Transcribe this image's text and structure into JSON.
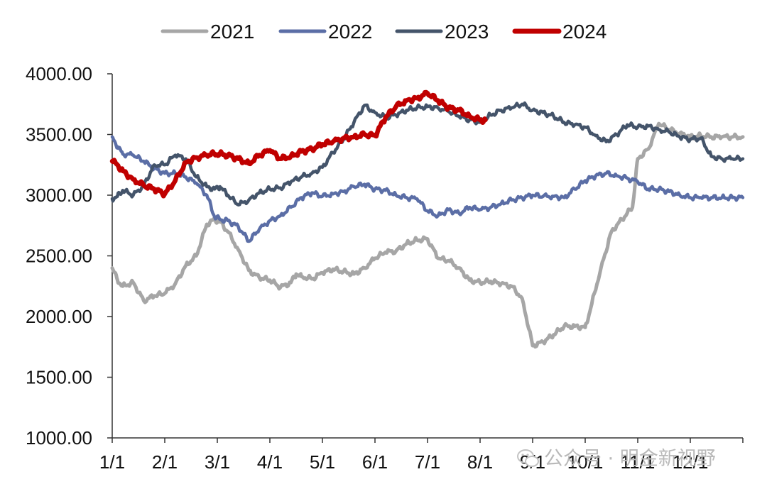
{
  "chart_data": {
    "type": "line",
    "title": "",
    "xlabel": "",
    "ylabel": "",
    "ylim": [
      1000,
      4000
    ],
    "y_ticks": [
      "4000.00",
      "3500.00",
      "3000.00",
      "2500.00",
      "2000.00",
      "1500.00",
      "1000.00"
    ],
    "x_ticks": [
      "1/1",
      "2/1",
      "3/1",
      "4/1",
      "5/1",
      "6/1",
      "7/1",
      "8/1",
      "9/1",
      "10/1",
      "11/1",
      "12/1"
    ],
    "x_unit": "month (1 = Jan 1, 13 = Dec 31)",
    "legend_position": "top",
    "series": [
      {
        "name": "2021",
        "color": "#a6a6a6",
        "x": [
          1.0,
          1.1,
          1.2,
          1.4,
          1.6,
          1.8,
          2.0,
          2.2,
          2.4,
          2.6,
          2.8,
          2.95,
          3.05,
          3.2,
          3.4,
          3.6,
          3.8,
          4.0,
          4.2,
          4.4,
          4.5,
          4.6,
          4.8,
          5.0,
          5.2,
          5.4,
          5.6,
          5.8,
          6.0,
          6.2,
          6.4,
          6.6,
          6.8,
          7.0,
          7.2,
          7.4,
          7.6,
          7.8,
          8.0,
          8.2,
          8.4,
          8.6,
          8.8,
          9.0,
          9.2,
          9.4,
          9.6,
          9.8,
          10.0,
          10.1,
          10.3,
          10.5,
          10.7,
          10.9,
          11.0,
          11.2,
          11.4,
          11.6,
          11.8,
          12.0,
          12.2,
          12.4,
          12.6,
          12.8,
          13.0
        ],
        "values": [
          2400,
          2300,
          2250,
          2280,
          2130,
          2170,
          2190,
          2270,
          2420,
          2500,
          2760,
          2800,
          2780,
          2700,
          2550,
          2380,
          2320,
          2300,
          2240,
          2280,
          2350,
          2330,
          2310,
          2360,
          2390,
          2370,
          2350,
          2400,
          2480,
          2530,
          2540,
          2600,
          2630,
          2640,
          2480,
          2460,
          2400,
          2300,
          2280,
          2290,
          2270,
          2250,
          2150,
          1760,
          1790,
          1850,
          1920,
          1920,
          1910,
          2060,
          2400,
          2700,
          2800,
          2900,
          3300,
          3380,
          3590,
          3540,
          3510,
          3480,
          3490,
          3480,
          3480,
          3480,
          3480
        ],
        "drawn_until": 13.0
      },
      {
        "name": "2022",
        "color": "#5b6ea6",
        "x": [
          1.0,
          1.1,
          1.2,
          1.4,
          1.6,
          1.8,
          2.0,
          2.2,
          2.4,
          2.6,
          2.8,
          2.95,
          3.05,
          3.2,
          3.4,
          3.6,
          3.8,
          4.0,
          4.2,
          4.4,
          4.6,
          4.8,
          5.0,
          5.2,
          5.4,
          5.6,
          5.8,
          6.0,
          6.2,
          6.4,
          6.6,
          6.8,
          7.0,
          7.2,
          7.4,
          7.6,
          7.8,
          8.0,
          8.2,
          8.4,
          8.6,
          8.8,
          9.0,
          9.2,
          9.4,
          9.6,
          9.8,
          10.0,
          10.2,
          10.4,
          10.6,
          10.8,
          11.0,
          11.2,
          11.4,
          11.6,
          11.8,
          12.0,
          12.2,
          12.4,
          12.6,
          12.8,
          13.0
        ],
        "values": [
          3480,
          3400,
          3340,
          3330,
          3280,
          3220,
          3180,
          3180,
          3150,
          3100,
          3000,
          2820,
          2800,
          2790,
          2740,
          2620,
          2720,
          2790,
          2830,
          2900,
          2980,
          3020,
          2990,
          3010,
          3030,
          3070,
          3090,
          3050,
          3040,
          3000,
          2980,
          2970,
          2870,
          2830,
          2880,
          2850,
          2900,
          2880,
          2900,
          2930,
          2960,
          2980,
          3000,
          2990,
          2990,
          2980,
          3050,
          3120,
          3160,
          3180,
          3160,
          3140,
          3110,
          3050,
          3050,
          3030,
          3000,
          2980,
          2980,
          2980,
          2980,
          2980,
          2980
        ],
        "drawn_until": 13.0
      },
      {
        "name": "2023",
        "color": "#44546a",
        "x": [
          1.0,
          1.1,
          1.2,
          1.4,
          1.6,
          1.8,
          2.0,
          2.2,
          2.4,
          2.6,
          2.8,
          2.95,
          3.05,
          3.2,
          3.4,
          3.6,
          3.8,
          4.0,
          4.2,
          4.4,
          4.6,
          4.8,
          5.0,
          5.2,
          5.4,
          5.6,
          5.8,
          6.0,
          6.2,
          6.4,
          6.6,
          6.8,
          7.0,
          7.2,
          7.4,
          7.6,
          7.8,
          8.0,
          8.2,
          8.4,
          8.6,
          8.8,
          9.0,
          9.2,
          9.4,
          9.6,
          9.8,
          10.0,
          10.2,
          10.4,
          10.6,
          10.8,
          11.0,
          11.2,
          11.4,
          11.6,
          11.8,
          12.0,
          12.2,
          12.4,
          12.6,
          12.8,
          13.0
        ],
        "values": [
          2970,
          2990,
          3040,
          3000,
          3080,
          3250,
          3250,
          3330,
          3300,
          3150,
          3070,
          3050,
          3070,
          3000,
          2920,
          2960,
          3020,
          3050,
          3060,
          3110,
          3150,
          3180,
          3230,
          3350,
          3460,
          3600,
          3740,
          3680,
          3640,
          3660,
          3700,
          3720,
          3730,
          3720,
          3690,
          3650,
          3620,
          3600,
          3660,
          3700,
          3720,
          3750,
          3700,
          3680,
          3650,
          3600,
          3580,
          3560,
          3490,
          3440,
          3500,
          3580,
          3560,
          3570,
          3540,
          3520,
          3480,
          3460,
          3470,
          3320,
          3300,
          3300,
          3300
        ],
        "drawn_until": 13.0
      },
      {
        "name": "2024",
        "color": "#c00000",
        "x": [
          1.0,
          1.1,
          1.2,
          1.4,
          1.6,
          1.8,
          2.0,
          2.2,
          2.4,
          2.6,
          2.8,
          2.95,
          3.05,
          3.2,
          3.4,
          3.6,
          3.8,
          4.0,
          4.2,
          4.4,
          4.6,
          4.8,
          5.0,
          5.2,
          5.4,
          5.6,
          5.8,
          6.0,
          6.2,
          6.4,
          6.6,
          6.8,
          7.0,
          7.2,
          7.4,
          7.6,
          7.8,
          8.0,
          8.1
        ],
        "values": [
          3280,
          3250,
          3200,
          3130,
          3080,
          3050,
          3010,
          3120,
          3270,
          3310,
          3330,
          3340,
          3340,
          3330,
          3300,
          3260,
          3330,
          3370,
          3300,
          3320,
          3360,
          3380,
          3420,
          3440,
          3470,
          3480,
          3500,
          3490,
          3640,
          3730,
          3780,
          3800,
          3840,
          3780,
          3720,
          3700,
          3650,
          3620,
          3620
        ],
        "drawn_until": 8.1
      }
    ]
  },
  "watermark": {
    "text": "公众号 · 明金新视野",
    "icon": "wechat-icon"
  }
}
